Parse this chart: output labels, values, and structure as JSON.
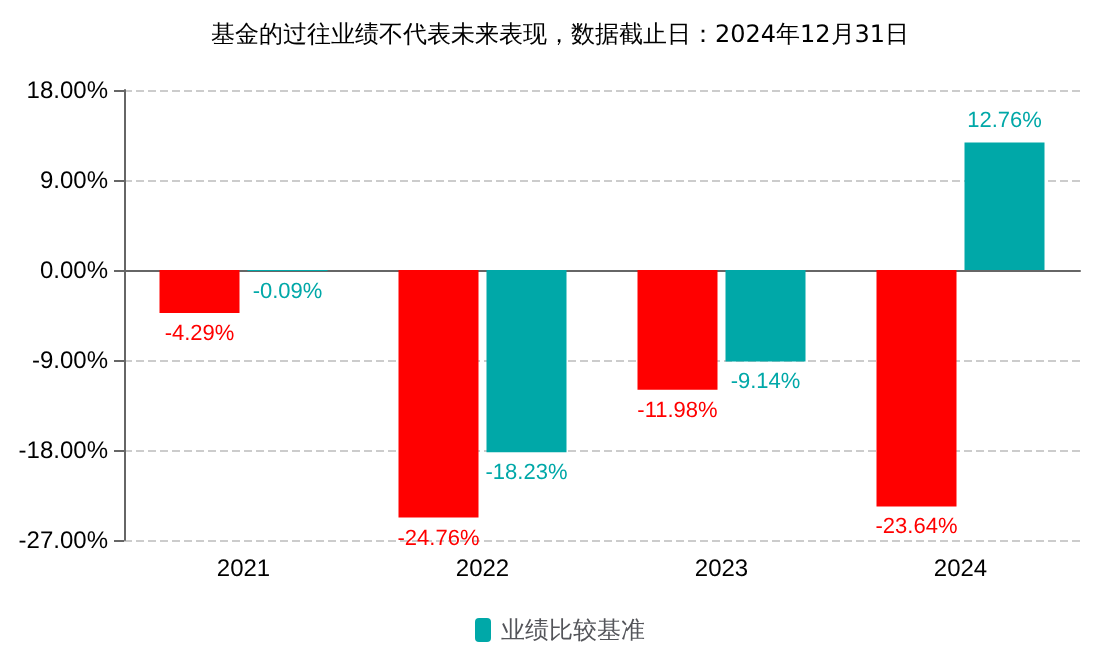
{
  "chart_data": {
    "type": "bar",
    "title": "基金的过往业绩不代表未来表现，数据截止日：2024年12月31日",
    "categories": [
      "2021",
      "2022",
      "2023",
      "2024"
    ],
    "series": [
      {
        "color": "#ff0000",
        "values": [
          -4.29,
          -24.76,
          -11.98,
          -23.64
        ],
        "value_labels": [
          "-4.29%",
          "-24.76%",
          "-11.98%",
          "-23.64%"
        ]
      },
      {
        "name": "业绩比较基准",
        "color": "#00a8a8",
        "values": [
          -0.09,
          -18.23,
          -9.14,
          12.76
        ],
        "value_labels": [
          "-0.09%",
          "-18.23%",
          "-9.14%",
          "12.76%"
        ]
      }
    ],
    "ylim": [
      -27,
      18
    ],
    "yticks": [
      {
        "value": -27,
        "label": "-27.00%"
      },
      {
        "value": -18,
        "label": "-18.00%"
      },
      {
        "value": -9,
        "label": "-9.00%"
      },
      {
        "value": 0,
        "label": "0.00%"
      },
      {
        "value": 9,
        "label": "9.00%"
      },
      {
        "value": 18,
        "label": "18.00%"
      }
    ],
    "grid": true,
    "legend": "bottom"
  }
}
